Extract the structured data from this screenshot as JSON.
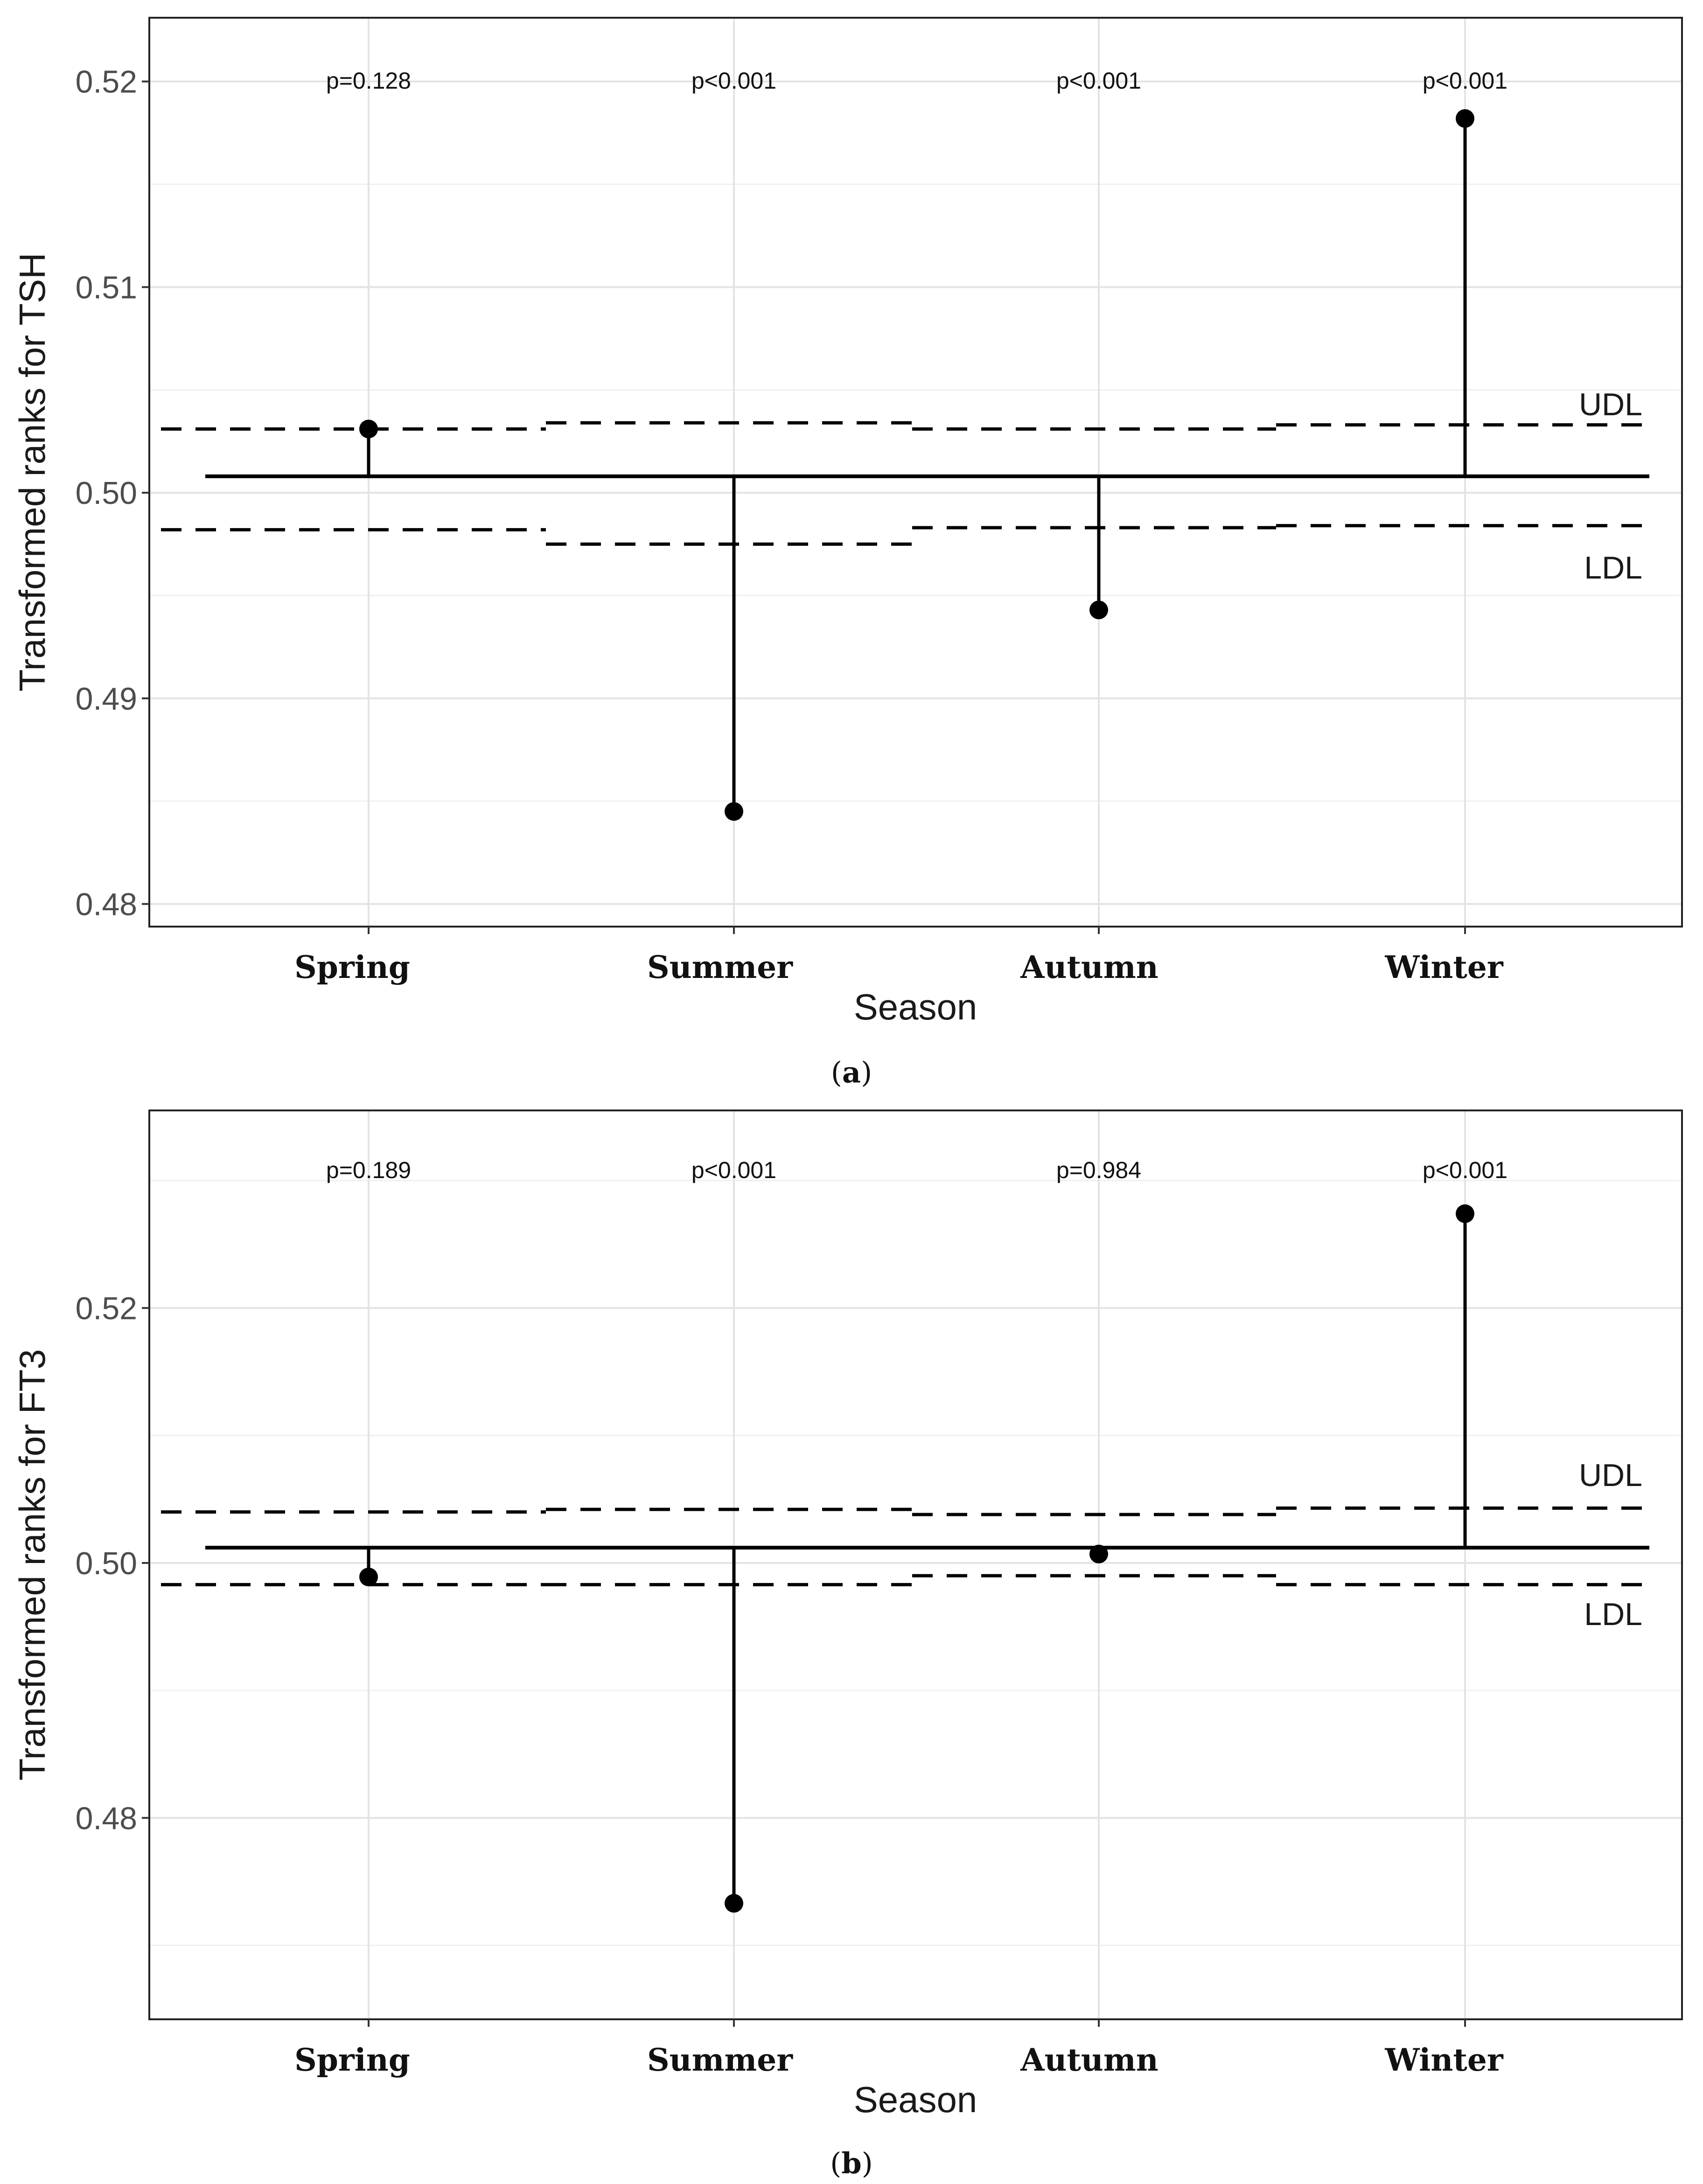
{
  "chart_data": [
    {
      "type": "scatter",
      "chart_kind": "ANOM lollipop chart",
      "caption_letter": "a",
      "xlabel": "Season",
      "ylabel": "Transformed ranks for TSH",
      "categories": [
        "Spring",
        "Summer",
        "Autumn",
        "Winter"
      ],
      "values": [
        0.5031,
        0.4845,
        0.4943,
        0.5182
      ],
      "center": 0.5008,
      "udl": [
        0.5031,
        0.5034,
        0.5031,
        0.5033
      ],
      "ldl": [
        0.4982,
        0.4975,
        0.4983,
        0.4984
      ],
      "p_values": [
        "p=0.128",
        "p<0.001",
        "p<0.001",
        "p<0.001"
      ],
      "udl_label": "UDL",
      "ldl_label": "LDL",
      "ylim": [
        0.4789,
        0.5231
      ],
      "yticks": [
        0.48,
        0.49,
        0.5,
        0.51,
        0.52
      ],
      "ytick_labels": [
        "0.48",
        "0.49",
        "0.50",
        "0.51",
        "0.52"
      ],
      "grid": true
    },
    {
      "type": "scatter",
      "chart_kind": "ANOM lollipop chart",
      "caption_letter": "b",
      "xlabel": "Season",
      "ylabel": "Transformed ranks for FT3",
      "categories": [
        "Spring",
        "Summer",
        "Autumn",
        "Winter"
      ],
      "values": [
        0.4989,
        0.4733,
        0.5007,
        0.5274
      ],
      "center": 0.5012,
      "udl": [
        0.504,
        0.5042,
        0.5038,
        0.5043
      ],
      "ldl": [
        0.4983,
        0.4983,
        0.499,
        0.4983
      ],
      "p_values": [
        "p=0.189",
        "p<0.001",
        "p=0.984",
        "p<0.001"
      ],
      "udl_label": "UDL",
      "ldl_label": "LDL",
      "ylim": [
        0.4642,
        0.5355
      ],
      "yticks": [
        0.48,
        0.5,
        0.52
      ],
      "ytick_labels": [
        "0.48",
        "0.50",
        "0.52"
      ],
      "grid": true
    }
  ]
}
